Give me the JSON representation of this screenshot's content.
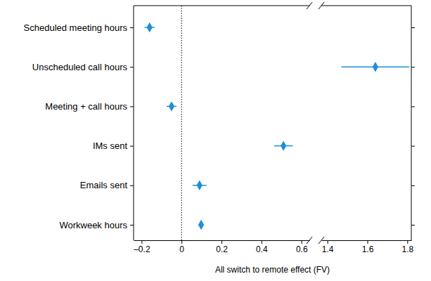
{
  "chart_data": {
    "type": "dot",
    "xlabel": "All switch to remote effect (FV)",
    "categories": [
      "Scheduled meeting hours",
      "Unscheduled call hours",
      "Meeting + call hours",
      "IMs sent",
      "Emails sent",
      "Workweek hours"
    ],
    "values": [
      -0.16,
      1.64,
      -0.05,
      0.51,
      0.09,
      0.098
    ],
    "errors": [
      0.025,
      0.17,
      0.025,
      0.047,
      0.035,
      0.005
    ],
    "color": "#1f8fd8",
    "marker": "diamond",
    "reference_x": 0,
    "xlim": [
      [
        -0.24,
        0.64
      ],
      [
        1.37,
        1.82
      ]
    ],
    "xticks": [
      [
        {
          "value": -0.2,
          "label": "–0.2"
        },
        0,
        0.2,
        0.4,
        0.6
      ],
      [
        1.4,
        1.6,
        1.8
      ]
    ]
  }
}
